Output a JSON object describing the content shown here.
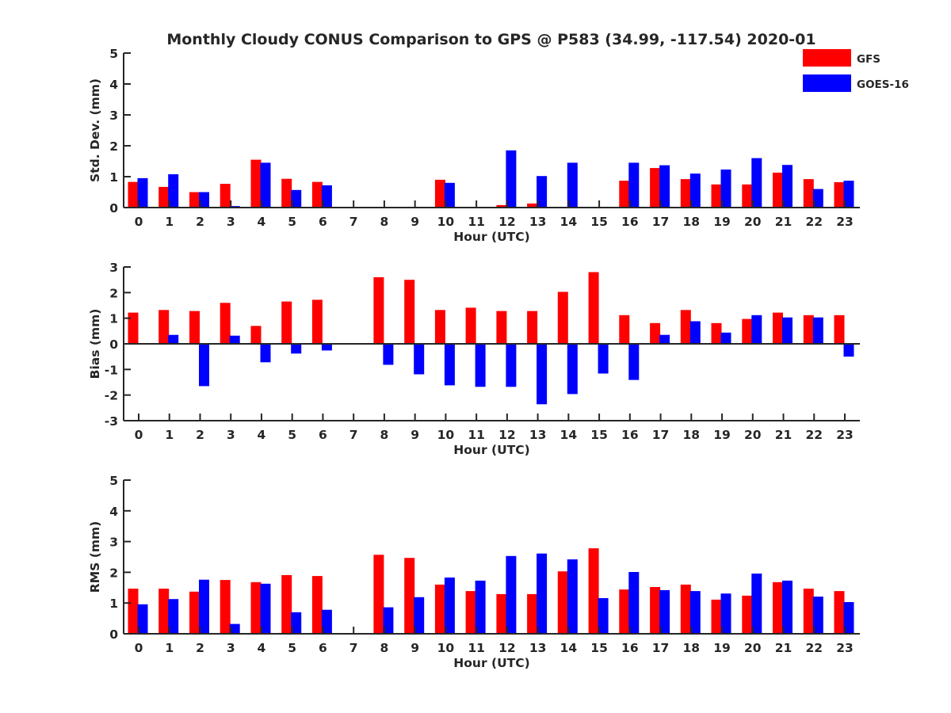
{
  "figure": {
    "title": "Monthly Cloudy CONUS Comparison to GPS @ P583 (34.99, -117.54) 2020-01",
    "legend": {
      "placement": "top-right",
      "entries": [
        {
          "name": "GFS",
          "color": "#ff0000"
        },
        {
          "name": "GOES-16",
          "color": "#0000ff"
        }
      ]
    }
  },
  "chart_data": [
    {
      "type": "bar",
      "title": "Monthly Cloudy CONUS Comparison to GPS @ P583 (34.99, -117.54) 2020-01",
      "xlabel": "Hour (UTC)",
      "ylabel": "Std. Dev. (mm)",
      "ylim": [
        0,
        5
      ],
      "yticks": [
        "0",
        "1",
        "2",
        "3",
        "4",
        "5"
      ],
      "ytick_values": [
        0,
        1,
        2,
        3,
        4,
        5
      ],
      "categories": [
        "0",
        "1",
        "2",
        "3",
        "4",
        "5",
        "6",
        "7",
        "8",
        "9",
        "10",
        "11",
        "12",
        "13",
        "14",
        "15",
        "16",
        "17",
        "18",
        "19",
        "20",
        "21",
        "22",
        "23"
      ],
      "grid": false,
      "series": [
        {
          "name": "GFS",
          "color": "#ff0000",
          "values": [
            0.83,
            0.67,
            0.5,
            0.77,
            1.55,
            0.93,
            0.83,
            0,
            0,
            0,
            0.9,
            0,
            0.08,
            0.13,
            0,
            0,
            0.87,
            1.28,
            0.92,
            0.75,
            0.75,
            1.13,
            0.92,
            0.82
          ]
        },
        {
          "name": "GOES-16",
          "color": "#0000ff",
          "values": [
            0.95,
            1.08,
            0.5,
            0.05,
            1.45,
            0.57,
            0.72,
            0,
            0,
            0,
            0.8,
            0,
            1.85,
            1.02,
            1.45,
            0,
            1.45,
            1.37,
            1.1,
            1.23,
            1.6,
            1.38,
            0.6,
            0.87
          ]
        }
      ]
    },
    {
      "type": "bar",
      "xlabel": "Hour (UTC)",
      "ylabel": "Bias (mm)",
      "ylim": [
        -3,
        3
      ],
      "yticks": [
        "-3",
        "-2",
        "-1",
        "0",
        "1",
        "2",
        "3"
      ],
      "ytick_values": [
        -3,
        -2,
        -1,
        0,
        1,
        2,
        3
      ],
      "categories": [
        "0",
        "1",
        "2",
        "3",
        "4",
        "5",
        "6",
        "7",
        "8",
        "9",
        "10",
        "11",
        "12",
        "13",
        "14",
        "15",
        "16",
        "17",
        "18",
        "19",
        "20",
        "21",
        "22",
        "23"
      ],
      "grid": false,
      "series": [
        {
          "name": "GFS",
          "color": "#ff0000",
          "values": [
            1.22,
            1.32,
            1.28,
            1.6,
            0.7,
            1.65,
            1.72,
            0,
            2.6,
            2.5,
            1.32,
            1.41,
            1.28,
            1.28,
            2.03,
            2.8,
            1.12,
            0.81,
            1.32,
            0.81,
            0.97,
            1.22,
            1.12,
            1.12
          ]
        },
        {
          "name": "GOES-16",
          "color": "#0000ff",
          "values": [
            -0.03,
            0.35,
            -1.65,
            0.32,
            -0.72,
            -0.38,
            -0.26,
            0,
            -0.82,
            -1.19,
            -1.62,
            -1.68,
            -1.68,
            -2.36,
            -1.96,
            -1.16,
            -1.41,
            0.35,
            0.88,
            0.44,
            1.12,
            1.03,
            1.03,
            -0.5
          ]
        }
      ]
    },
    {
      "type": "bar",
      "xlabel": "Hour (UTC)",
      "ylabel": "RMS (mm)",
      "ylim": [
        0,
        5
      ],
      "yticks": [
        "0",
        "1",
        "2",
        "3",
        "4",
        "5"
      ],
      "ytick_values": [
        0,
        1,
        2,
        3,
        4,
        5
      ],
      "categories": [
        "0",
        "1",
        "2",
        "3",
        "4",
        "5",
        "6",
        "7",
        "8",
        "9",
        "10",
        "11",
        "12",
        "13",
        "14",
        "15",
        "16",
        "17",
        "18",
        "19",
        "20",
        "21",
        "22",
        "23"
      ],
      "grid": false,
      "series": [
        {
          "name": "GFS",
          "color": "#ff0000",
          "values": [
            1.47,
            1.47,
            1.37,
            1.75,
            1.68,
            1.91,
            1.88,
            0,
            2.57,
            2.47,
            1.6,
            1.39,
            1.29,
            1.29,
            2.03,
            2.78,
            1.44,
            1.52,
            1.6,
            1.11,
            1.24,
            1.68,
            1.47,
            1.39
          ]
        },
        {
          "name": "GOES-16",
          "color": "#0000ff",
          "values": [
            0.96,
            1.13,
            1.76,
            0.32,
            1.63,
            0.7,
            0.78,
            0,
            0.86,
            1.19,
            1.83,
            1.73,
            2.53,
            2.61,
            2.42,
            1.16,
            2.01,
            1.42,
            1.39,
            1.31,
            1.96,
            1.73,
            1.21,
            1.03
          ]
        }
      ]
    }
  ]
}
